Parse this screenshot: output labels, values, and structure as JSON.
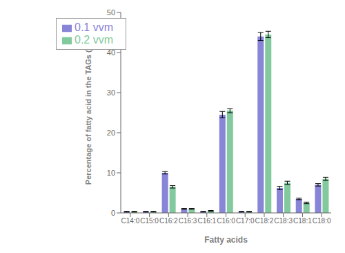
{
  "chart_data": {
    "type": "bar",
    "xlabel": "Fatty acids",
    "ylabel": "Percentage of fatty acid in the TAGs (%)",
    "categories": [
      "C14:0",
      "C15:0",
      "C16:2",
      "C16:3",
      "C16:1",
      "C16:0",
      "C17:0",
      "C18:2",
      "C18:3",
      "C18:1",
      "C18:0"
    ],
    "series": [
      {
        "name": "0.1 vvm",
        "color": "#8884d8",
        "values": [
          0.3,
          0.3,
          10.0,
          1.0,
          0.3,
          24.5,
          0.3,
          44.0,
          6.2,
          3.5,
          7.0
        ],
        "errors": [
          0.1,
          0.1,
          0.3,
          0.1,
          0.1,
          0.8,
          0.1,
          1.0,
          0.4,
          0.2,
          0.3
        ]
      },
      {
        "name": "0.2 vvm",
        "color": "#82ca9d",
        "values": [
          0.3,
          0.3,
          6.5,
          1.0,
          0.5,
          25.5,
          0.3,
          44.5,
          7.5,
          2.5,
          8.5
        ],
        "errors": [
          0.1,
          0.1,
          0.3,
          0.1,
          0.1,
          0.5,
          0.1,
          0.8,
          0.4,
          0.2,
          0.4
        ]
      }
    ],
    "ylim": [
      0,
      50
    ],
    "yticks": [
      0,
      10,
      20,
      30,
      40,
      50
    ],
    "grid": false,
    "legend": "upper left"
  }
}
